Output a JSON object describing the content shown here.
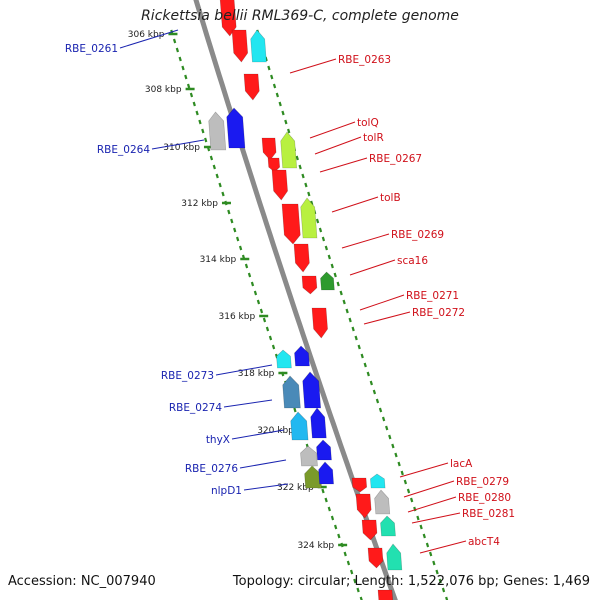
{
  "title": "Rickettsia bellii RML369-C, complete genome",
  "accession": "Accession: NC_007940",
  "summary": "Topology: circular; Length: 1,522,076 bp; Genes: 1,469",
  "colors": {
    "backbone": "#8a8a8a",
    "tick": "#2e8b22",
    "label_minus": "#1a24b0",
    "label_plus": "#d0101a",
    "red": "#ff1a1a",
    "cyan": "#22e6f0",
    "lime": "#b8f040",
    "green": "#2e9a2e",
    "blue": "#1a1af0",
    "gray": "#bdbdbd",
    "steelblue": "#4a8ab8",
    "skyblue": "#22b8f0",
    "olive": "#7a9a2a",
    "teal": "#22e0b0"
  },
  "scale": [
    "306 kbp",
    "308 kbp",
    "310 kbp",
    "312 kbp",
    "314 kbp",
    "316 kbp",
    "318 kbp",
    "320 kbp",
    "322 kbp",
    "324 kbp"
  ],
  "minus_labels": [
    "RBE_0261",
    "RBE_0264",
    "RBE_0273",
    "RBE_0274",
    "thyX",
    "RBE_0276",
    "nlpD1"
  ],
  "plus_labels": [
    "RBE_0263",
    "tolQ",
    "tolR",
    "RBE_0267",
    "tolB",
    "RBE_0269",
    "sca16",
    "RBE_0271",
    "RBE_0272",
    "lacA",
    "RBE_0279",
    "RBE_0280",
    "RBE_0281",
    "abcT4"
  ]
}
